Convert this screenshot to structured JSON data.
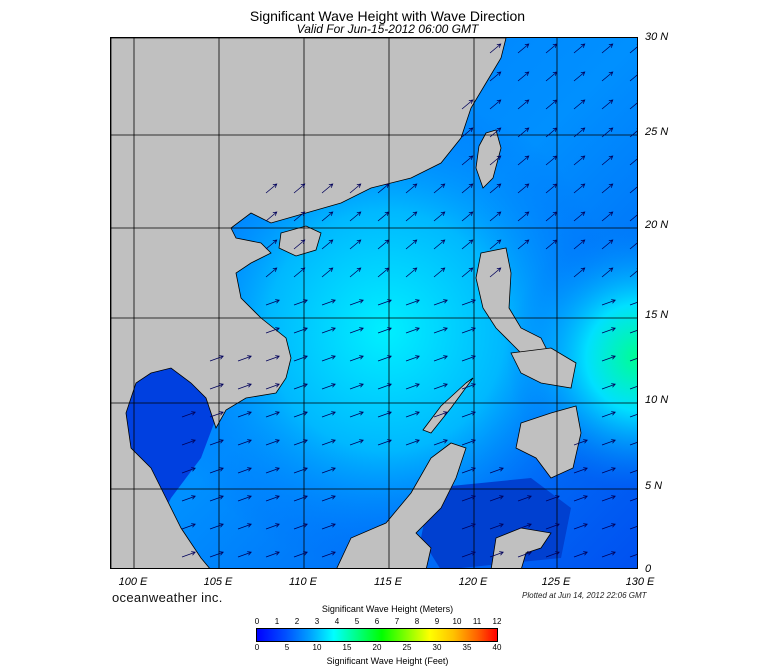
{
  "title": "Significant Wave Height with Wave Direction",
  "subtitle": "Valid For Jun-15-2012 06:00 GMT",
  "lat_labels": [
    "30 N",
    "25 N",
    "20 N",
    "15 N",
    "10 N",
    "5 N",
    "0"
  ],
  "lon_labels": [
    "100 E",
    "105 E",
    "110 E",
    "115 E",
    "120 E",
    "125 E",
    "130 E"
  ],
  "brand": "oceanweather inc.",
  "plotted": "Plotted at Jun 14, 2012 22:06 GMT",
  "legend": {
    "meters_label": "Significant Wave Height (Meters)",
    "feet_label": "Significant Wave Height (Feet)",
    "meter_ticks": [
      "0",
      "1",
      "2",
      "3",
      "4",
      "5",
      "6",
      "7",
      "8",
      "9",
      "10",
      "11",
      "12"
    ],
    "feet_ticks": [
      "0",
      "5",
      "10",
      "15",
      "20",
      "25",
      "30",
      "35",
      "40"
    ]
  },
  "colors": {
    "land": "#c0c0c0",
    "sea_low": "#0000ff",
    "sea_mid": "#00a0ff",
    "sea_high": "#00ffff",
    "arrow": "#000080"
  }
}
